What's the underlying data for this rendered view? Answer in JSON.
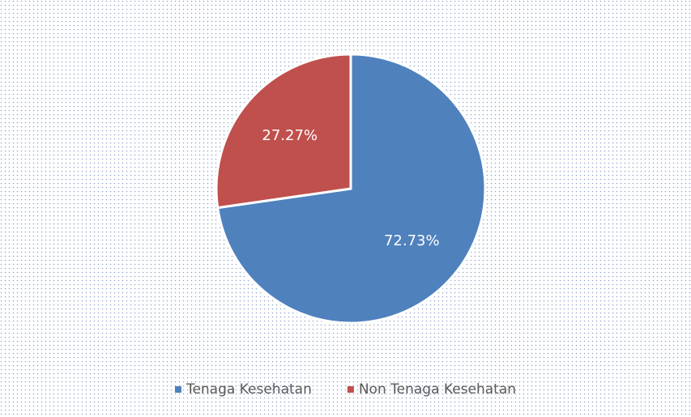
{
  "chart_data": {
    "type": "pie",
    "categories": [
      "Tenaga Kesehatan",
      "Non Tenaga Kesehatan"
    ],
    "values": [
      72.73,
      27.27
    ],
    "value_labels": [
      "72.73%",
      "27.27%"
    ],
    "colors": [
      "#4f81bd",
      "#c0504d"
    ],
    "legend": "bottom"
  }
}
